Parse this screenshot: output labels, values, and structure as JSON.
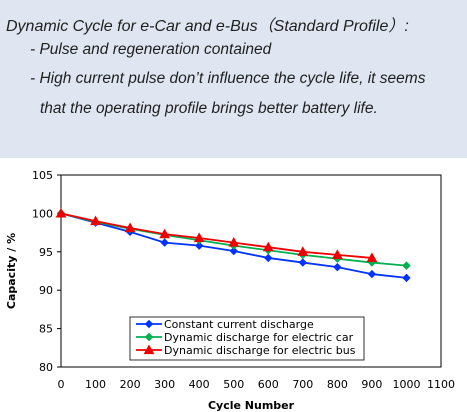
{
  "panel": {
    "title": "Dynamic Cycle for e-Car and e-Bus（Standard Profile）:",
    "bullet1": "- Pulse and regeneration contained",
    "bullet2": "- High current pulse don’t influence the cycle life, it seems",
    "bullet3": "that the operating profile brings better battery life."
  },
  "chart_data": {
    "type": "line",
    "xlabel": "Cycle Number",
    "ylabel": "Capacity / %",
    "xlim": [
      0,
      1100
    ],
    "ylim": [
      80,
      105
    ],
    "xticks": [
      0,
      100,
      200,
      300,
      400,
      500,
      600,
      700,
      800,
      900,
      1000,
      1100
    ],
    "yticks": [
      80,
      85,
      90,
      95,
      100,
      105
    ],
    "grid": false,
    "legend_position": "bottom-center",
    "series": [
      {
        "name": "Constant current discharge",
        "color": "#0033ff",
        "marker": "diamond",
        "x": [
          0,
          100,
          200,
          300,
          400,
          500,
          600,
          700,
          800,
          900,
          1000
        ],
        "y": [
          100,
          98.8,
          97.6,
          96.2,
          95.8,
          95.1,
          94.2,
          93.6,
          93.0,
          92.1,
          91.6
        ]
      },
      {
        "name": "Dynamic discharge for electric car",
        "color": "#00b050",
        "marker": "diamond",
        "x": [
          0,
          100,
          200,
          300,
          400,
          500,
          600,
          700,
          800,
          900,
          1000
        ],
        "y": [
          100,
          98.9,
          98.0,
          97.2,
          96.5,
          95.8,
          95.2,
          94.6,
          94.1,
          93.6,
          93.2
        ]
      },
      {
        "name": "Dynamic discharge for electric bus",
        "color": "#ee0000",
        "marker": "triangle",
        "x": [
          0,
          100,
          200,
          300,
          400,
          500,
          600,
          700,
          800,
          900
        ],
        "y": [
          100,
          99.0,
          98.1,
          97.3,
          96.8,
          96.2,
          95.6,
          95.0,
          94.6,
          94.2
        ]
      }
    ]
  }
}
